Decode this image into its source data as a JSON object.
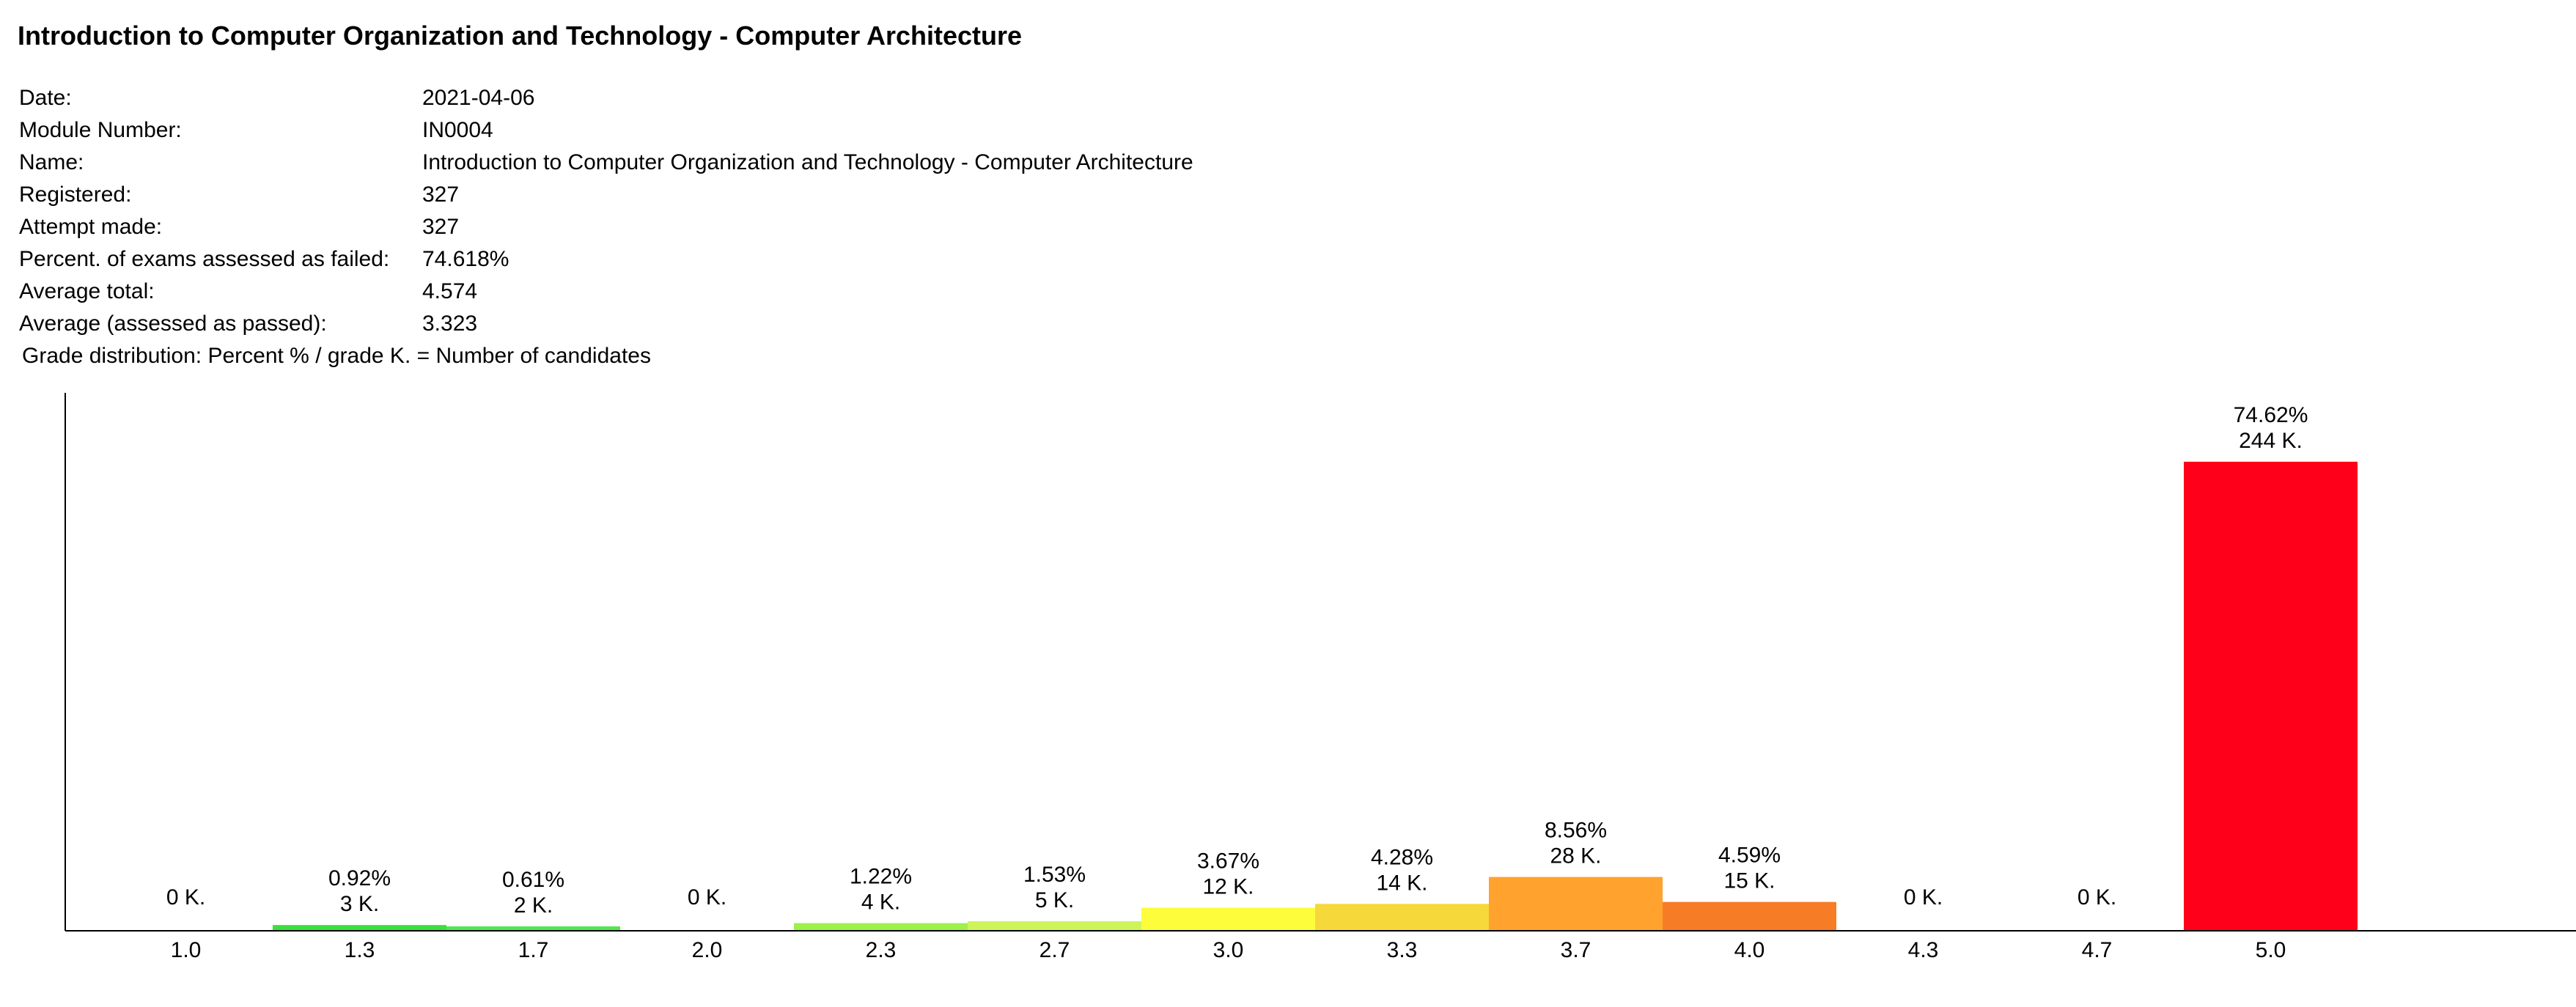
{
  "title": "Introduction to Computer Organization and Technology - Computer Architecture",
  "info": [
    {
      "label": "Date:",
      "value": "2021-04-06"
    },
    {
      "label": "Module Number:",
      "value": "IN0004"
    },
    {
      "label": "Name:",
      "value": "Introduction to Computer Organization and Technology - Computer Architecture"
    },
    {
      "label": "Registered:",
      "value": "327"
    },
    {
      "label": "Attempt made:",
      "value": "327"
    },
    {
      "label": "Percent. of exams assessed as failed:",
      "value": "74.618%"
    },
    {
      "label": "Average total:",
      "value": "4.574"
    },
    {
      "label": "Average (assessed as passed):",
      "value": "3.323"
    }
  ],
  "distribution_note": "Grade distribution: Percent % / grade K. = Number of candidates",
  "chart_data": {
    "type": "bar",
    "categories": [
      "1.0",
      "1.3",
      "1.7",
      "2.0",
      "2.3",
      "2.7",
      "3.0",
      "3.3",
      "3.7",
      "4.0",
      "4.3",
      "4.7",
      "5.0"
    ],
    "values": [
      0,
      3,
      2,
      0,
      4,
      5,
      12,
      14,
      28,
      15,
      0,
      0,
      244
    ],
    "percent_labels": [
      "",
      "0.92%",
      "0.61%",
      "",
      "1.22%",
      "1.53%",
      "3.67%",
      "4.28%",
      "8.56%",
      "4.59%",
      "",
      "",
      "74.62%"
    ],
    "count_labels": [
      "0 K.",
      "3 K.",
      "2 K.",
      "0 K.",
      "4 K.",
      "5 K.",
      "12 K.",
      "14 K.",
      "28 K.",
      "15 K.",
      "0 K.",
      "0 K.",
      "244 K."
    ],
    "colors": [
      "#2bd62b",
      "#3ae03a",
      "#4fe84f",
      "#7de83a",
      "#9ef04a",
      "#cdf55a",
      "#fdfd3c",
      "#f7d83a",
      "#ffa22e",
      "#f77c26",
      "#f25a1c",
      "#f2301a",
      "#ff001a"
    ],
    "ylim": [
      0,
      244
    ],
    "xlabel": "",
    "ylabel": "",
    "grid": false
  }
}
